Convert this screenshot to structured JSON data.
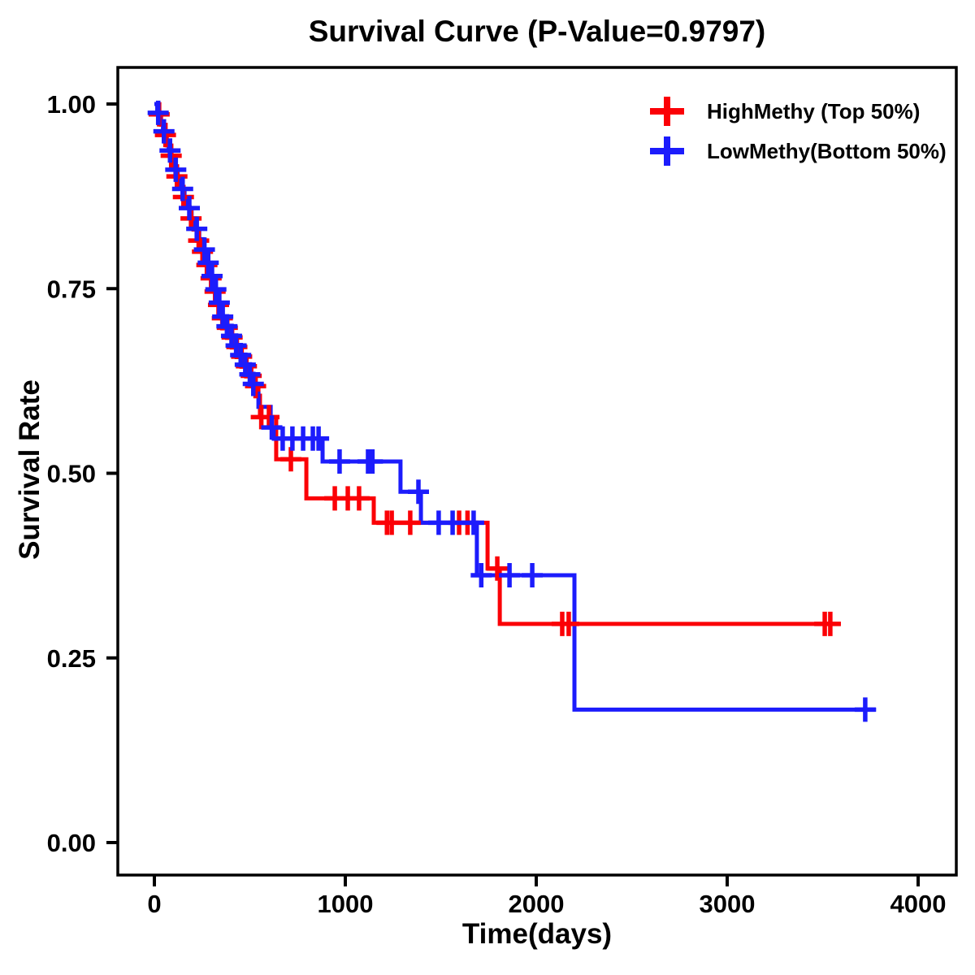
{
  "title": "Survival Curve (P-Value=0.9797)",
  "axes": {
    "x": {
      "label": "Time(days)",
      "tick_values": [
        0,
        1000,
        2000,
        3000,
        4000
      ],
      "tick_labels": [
        "0",
        "1000",
        "2000",
        "3000",
        "4000"
      ],
      "range": [
        0,
        4000
      ]
    },
    "y": {
      "label": "Survival Rate",
      "tick_values": [
        1.0,
        0.75,
        0.5,
        0.25,
        0.0
      ],
      "tick_labels": [
        "1.00",
        "0.75",
        "0.50",
        "0.25",
        "0.00"
      ],
      "range": [
        0,
        1
      ]
    }
  },
  "legend": [
    {
      "label": "HighMethy (Top 50%)",
      "color": "#fb0006",
      "marker": "plus"
    },
    {
      "label": "LowMethy(Bottom 50%)",
      "color": "#1c1cfc",
      "marker": "plus"
    }
  ],
  "colors": {
    "high": "#fb0006",
    "low": "#1c1cfc",
    "axis": "#000000",
    "background": "#ffffff"
  },
  "p_value_text": "0.9797",
  "chart_data": {
    "type": "line",
    "subtype": "kaplan-meier-step",
    "title": "Survival Curve (P-Value=0.9797)",
    "xlabel": "Time(days)",
    "ylabel": "Survival Rate",
    "xlim": [
      0,
      4000
    ],
    "ylim": [
      0,
      1
    ],
    "grid": false,
    "legend_position": "top-right-inside",
    "series": [
      {
        "name": "HighMethy (Top 50%)",
        "color": "#fb0006",
        "end_time": 3595,
        "steps": [
          [
            0,
            1.0
          ],
          [
            18,
            0.986
          ],
          [
            35,
            0.972
          ],
          [
            50,
            0.958
          ],
          [
            65,
            0.944
          ],
          [
            80,
            0.93
          ],
          [
            95,
            0.916
          ],
          [
            110,
            0.902
          ],
          [
            128,
            0.888
          ],
          [
            147,
            0.874
          ],
          [
            166,
            0.86
          ],
          [
            185,
            0.845
          ],
          [
            205,
            0.83
          ],
          [
            225,
            0.815
          ],
          [
            245,
            0.8
          ],
          [
            268,
            0.782
          ],
          [
            290,
            0.764
          ],
          [
            312,
            0.746
          ],
          [
            330,
            0.728
          ],
          [
            349,
            0.71
          ],
          [
            375,
            0.697
          ],
          [
            400,
            0.684
          ],
          [
            425,
            0.671
          ],
          [
            450,
            0.658
          ],
          [
            475,
            0.645
          ],
          [
            500,
            0.632
          ],
          [
            522,
            0.618
          ],
          [
            545,
            0.605
          ],
          [
            553,
            0.576
          ],
          [
            638,
            0.519
          ],
          [
            796,
            0.466
          ],
          [
            1149,
            0.433
          ],
          [
            1745,
            0.371
          ],
          [
            1809,
            0.296
          ]
        ],
        "censors": [
          [
            25,
            0.986
          ],
          [
            58,
            0.958
          ],
          [
            88,
            0.93
          ],
          [
            118,
            0.902
          ],
          [
            152,
            0.874
          ],
          [
            192,
            0.845
          ],
          [
            232,
            0.815
          ],
          [
            252,
            0.8
          ],
          [
            275,
            0.782
          ],
          [
            297,
            0.764
          ],
          [
            318,
            0.746
          ],
          [
            336,
            0.728
          ],
          [
            356,
            0.71
          ],
          [
            382,
            0.697
          ],
          [
            407,
            0.684
          ],
          [
            432,
            0.671
          ],
          [
            457,
            0.658
          ],
          [
            482,
            0.645
          ],
          [
            507,
            0.632
          ],
          [
            530,
            0.618
          ],
          [
            560,
            0.576
          ],
          [
            600,
            0.576
          ],
          [
            715,
            0.519
          ],
          [
            945,
            0.466
          ],
          [
            1013,
            0.466
          ],
          [
            1072,
            0.466
          ],
          [
            1218,
            0.433
          ],
          [
            1243,
            0.433
          ],
          [
            1340,
            0.433
          ],
          [
            1596,
            0.433
          ],
          [
            1640,
            0.433
          ],
          [
            1796,
            0.371
          ],
          [
            2136,
            0.296
          ],
          [
            2170,
            0.296
          ],
          [
            3511,
            0.296
          ],
          [
            3540,
            0.296
          ]
        ]
      },
      {
        "name": "LowMethy(Bottom 50%)",
        "color": "#1c1cfc",
        "end_time": 3780,
        "steps": [
          [
            0,
            1.0
          ],
          [
            15,
            0.988
          ],
          [
            30,
            0.976
          ],
          [
            45,
            0.963
          ],
          [
            60,
            0.95
          ],
          [
            75,
            0.937
          ],
          [
            90,
            0.924
          ],
          [
            105,
            0.911
          ],
          [
            122,
            0.898
          ],
          [
            140,
            0.885
          ],
          [
            158,
            0.872
          ],
          [
            176,
            0.859
          ],
          [
            195,
            0.845
          ],
          [
            215,
            0.831
          ],
          [
            235,
            0.817
          ],
          [
            255,
            0.803
          ],
          [
            275,
            0.785
          ],
          [
            295,
            0.767
          ],
          [
            315,
            0.749
          ],
          [
            333,
            0.731
          ],
          [
            350,
            0.712
          ],
          [
            374,
            0.699
          ],
          [
            398,
            0.686
          ],
          [
            422,
            0.673
          ],
          [
            446,
            0.66
          ],
          [
            470,
            0.647
          ],
          [
            494,
            0.634
          ],
          [
            512,
            0.621
          ],
          [
            530,
            0.608
          ],
          [
            545,
            0.59
          ],
          [
            609,
            0.562
          ],
          [
            625,
            0.547
          ],
          [
            881,
            0.516
          ],
          [
            1289,
            0.475
          ],
          [
            1396,
            0.433
          ],
          [
            1689,
            0.362
          ],
          [
            2200,
            0.18
          ]
        ],
        "censors": [
          [
            20,
            0.988
          ],
          [
            50,
            0.963
          ],
          [
            82,
            0.937
          ],
          [
            112,
            0.911
          ],
          [
            148,
            0.885
          ],
          [
            183,
            0.859
          ],
          [
            222,
            0.831
          ],
          [
            262,
            0.803
          ],
          [
            282,
            0.785
          ],
          [
            302,
            0.767
          ],
          [
            322,
            0.749
          ],
          [
            340,
            0.731
          ],
          [
            358,
            0.712
          ],
          [
            380,
            0.699
          ],
          [
            404,
            0.686
          ],
          [
            428,
            0.673
          ],
          [
            452,
            0.66
          ],
          [
            476,
            0.647
          ],
          [
            500,
            0.634
          ],
          [
            518,
            0.621
          ],
          [
            615,
            0.562
          ],
          [
            672,
            0.547
          ],
          [
            723,
            0.547
          ],
          [
            779,
            0.547
          ],
          [
            830,
            0.547
          ],
          [
            860,
            0.547
          ],
          [
            970,
            0.516
          ],
          [
            1119,
            0.516
          ],
          [
            1142,
            0.516
          ],
          [
            1383,
            0.475
          ],
          [
            1489,
            0.433
          ],
          [
            1562,
            0.433
          ],
          [
            1672,
            0.433
          ],
          [
            1712,
            0.362
          ],
          [
            1860,
            0.362
          ],
          [
            1979,
            0.362
          ],
          [
            3723,
            0.18
          ]
        ]
      }
    ]
  }
}
